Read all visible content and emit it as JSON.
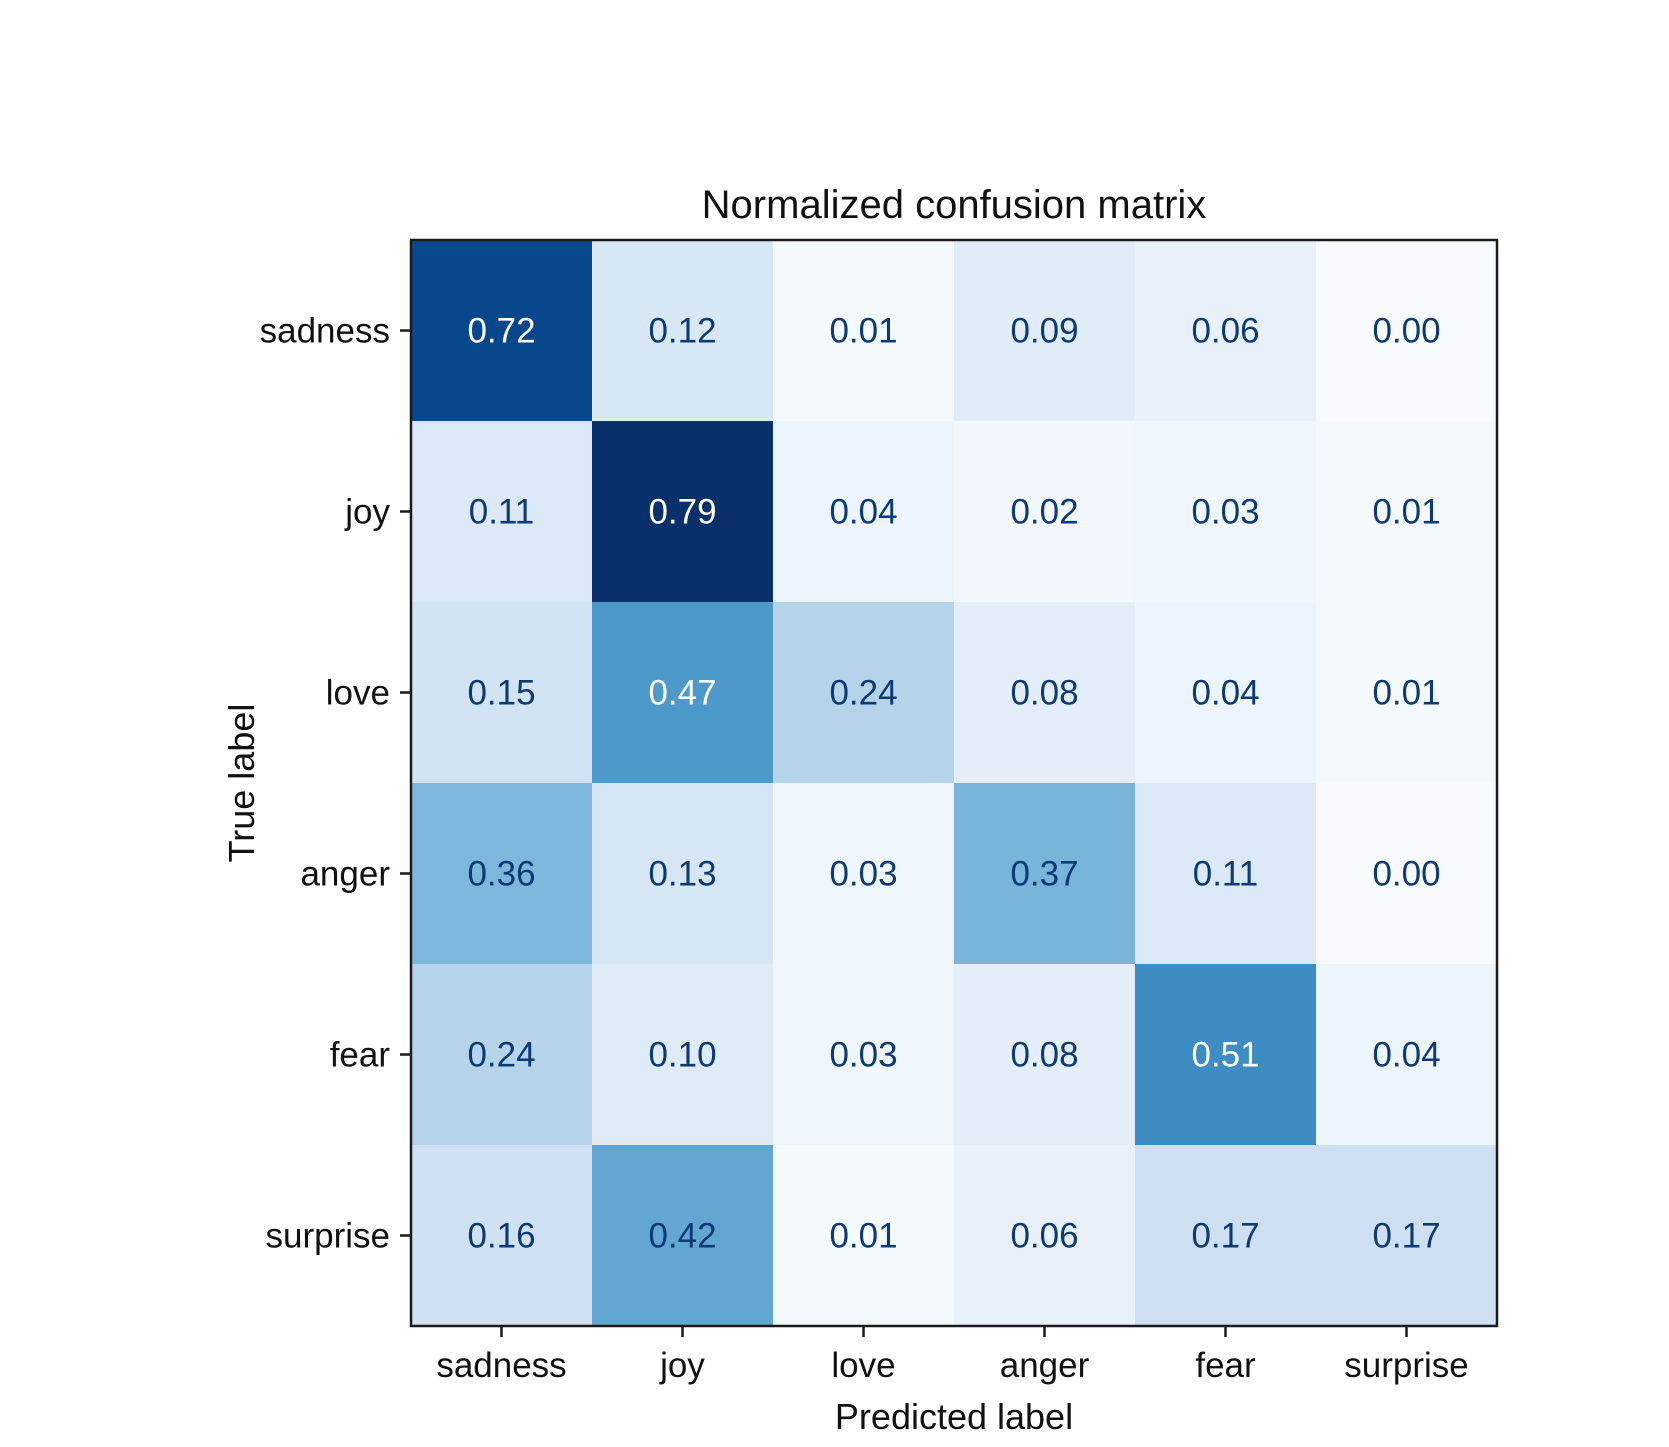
{
  "chart_data": {
    "type": "heatmap",
    "title": "Normalized confusion matrix",
    "xlabel": "Predicted label",
    "ylabel": "True label",
    "x_categories": [
      "sadness",
      "joy",
      "love",
      "anger",
      "fear",
      "surprise"
    ],
    "y_categories": [
      "sadness",
      "joy",
      "love",
      "anger",
      "fear",
      "surprise"
    ],
    "values": [
      [
        0.72,
        0.12,
        0.01,
        0.09,
        0.06,
        0.0
      ],
      [
        0.11,
        0.79,
        0.04,
        0.02,
        0.03,
        0.01
      ],
      [
        0.15,
        0.47,
        0.24,
        0.08,
        0.04,
        0.01
      ],
      [
        0.36,
        0.13,
        0.03,
        0.37,
        0.11,
        0.0
      ],
      [
        0.24,
        0.1,
        0.03,
        0.08,
        0.51,
        0.04
      ],
      [
        0.16,
        0.42,
        0.01,
        0.06,
        0.17,
        0.17
      ]
    ],
    "value_labels": [
      [
        "0.72",
        "0.12",
        "0.01",
        "0.09",
        "0.06",
        "0.00"
      ],
      [
        "0.11",
        "0.79",
        "0.04",
        "0.02",
        "0.03",
        "0.01"
      ],
      [
        "0.15",
        "0.47",
        "0.24",
        "0.08",
        "0.04",
        "0.01"
      ],
      [
        "0.36",
        "0.13",
        "0.03",
        "0.37",
        "0.11",
        "0.00"
      ],
      [
        "0.24",
        "0.10",
        "0.03",
        "0.08",
        "0.51",
        "0.04"
      ],
      [
        "0.16",
        "0.42",
        "0.01",
        "0.06",
        "0.17",
        "0.17"
      ]
    ],
    "colormap": "Blues",
    "colormap_stops": [
      "#f7fbff",
      "#deebf7",
      "#c6dbef",
      "#9ecae1",
      "#6baed6",
      "#4292c6",
      "#2171b5",
      "#08519c",
      "#08306b"
    ],
    "value_range": [
      0.0,
      0.79
    ],
    "text_color_dark": "#0b3a75",
    "text_color_light": "#ffffff",
    "grid": false,
    "colorbar": false
  }
}
